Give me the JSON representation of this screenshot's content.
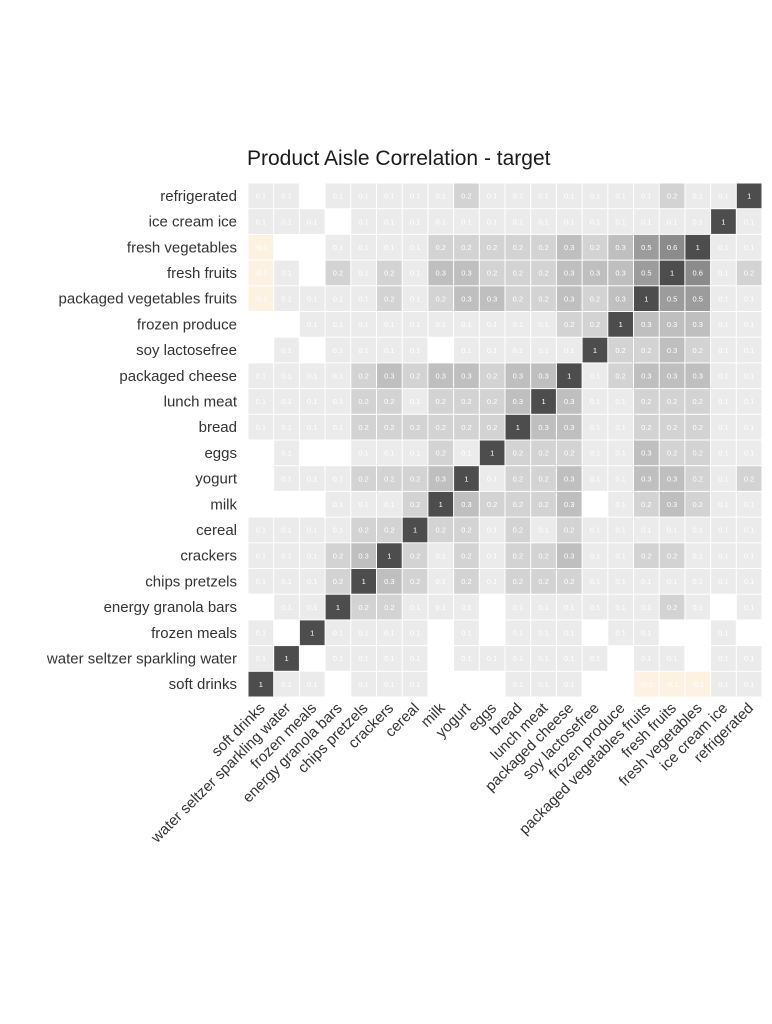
{
  "chart_data": {
    "type": "heatmap",
    "title": "Product Aisle Correlation - target",
    "xlabel": "",
    "ylabel": "",
    "labels": [
      "soft drinks",
      "water seltzer sparkling water",
      "frozen meals",
      "energy granola bars",
      "chips pretzels",
      "crackers",
      "cereal",
      "milk",
      "yogurt",
      "eggs",
      "bread",
      "lunch meat",
      "packaged cheese",
      "soy lactosefree",
      "frozen produce",
      "packaged vegetables fruits",
      "fresh fruits",
      "fresh vegetables",
      "ice cream ice",
      "refrigerated"
    ],
    "rows_top_to_bottom": [
      "refrigerated",
      "ice cream ice",
      "fresh vegetables",
      "fresh fruits",
      "packaged vegetables fruits",
      "frozen produce",
      "soy lactosefree",
      "packaged cheese",
      "lunch meat",
      "bread",
      "eggs",
      "yogurt",
      "milk",
      "cereal",
      "crackers",
      "chips pretzels",
      "energy granola bars",
      "frozen meals",
      "water seltzer sparkling water",
      "soft drinks"
    ],
    "values": [
      [
        0.1,
        0.1,
        null,
        0.1,
        0.1,
        0.1,
        0.1,
        0.1,
        0.2,
        0.1,
        0.1,
        0.1,
        0.1,
        0.1,
        0.1,
        0.1,
        0.2,
        0.1,
        0.1,
        1
      ],
      [
        0.1,
        0.1,
        0.1,
        null,
        0.1,
        0.1,
        0.1,
        0.1,
        0.1,
        0.1,
        0.1,
        0.1,
        0.1,
        0.1,
        0.1,
        0.1,
        0.1,
        0.1,
        1,
        0.1
      ],
      [
        -0.1,
        null,
        null,
        0.1,
        0.1,
        0.1,
        0.1,
        0.2,
        0.2,
        0.2,
        0.2,
        0.2,
        0.3,
        0.2,
        0.3,
        0.5,
        0.6,
        1,
        0.1,
        0.1
      ],
      [
        -0.1,
        0.1,
        null,
        0.2,
        0.1,
        0.2,
        0.1,
        0.3,
        0.3,
        0.2,
        0.2,
        0.2,
        0.3,
        0.3,
        0.3,
        0.5,
        1,
        0.6,
        0.1,
        0.2
      ],
      [
        -0.1,
        0.1,
        0.1,
        0.1,
        0.1,
        0.2,
        0.1,
        0.2,
        0.3,
        0.3,
        0.2,
        0.2,
        0.3,
        0.2,
        0.3,
        1,
        0.5,
        0.5,
        0.1,
        0.1
      ],
      [
        null,
        null,
        0.1,
        0.1,
        0.1,
        0.1,
        0.1,
        0.1,
        0.1,
        0.1,
        0.1,
        0.1,
        0.2,
        0.2,
        1,
        0.3,
        0.3,
        0.3,
        0.1,
        0.1
      ],
      [
        null,
        0.1,
        null,
        0.1,
        0.1,
        0.1,
        0.1,
        null,
        0.1,
        0.1,
        0.1,
        0.1,
        0.1,
        1,
        0.2,
        0.2,
        0.3,
        0.2,
        0.1,
        0.1
      ],
      [
        0.1,
        0.1,
        0.1,
        0.1,
        0.2,
        0.3,
        0.2,
        0.3,
        0.3,
        0.2,
        0.3,
        0.3,
        1,
        0.1,
        0.2,
        0.3,
        0.3,
        0.3,
        0.1,
        0.1
      ],
      [
        0.1,
        0.1,
        0.1,
        0.1,
        0.2,
        0.2,
        0.1,
        0.2,
        0.2,
        0.2,
        0.3,
        1,
        0.3,
        0.1,
        0.1,
        0.2,
        0.2,
        0.2,
        0.1,
        0.1
      ],
      [
        0.1,
        0.1,
        0.1,
        0.1,
        0.2,
        0.2,
        0.2,
        0.2,
        0.2,
        0.2,
        1,
        0.3,
        0.3,
        0.1,
        0.1,
        0.2,
        0.2,
        0.2,
        0.1,
        0.1
      ],
      [
        null,
        0.1,
        null,
        null,
        0.1,
        0.1,
        0.1,
        0.2,
        0.1,
        1,
        0.2,
        0.2,
        0.2,
        0.1,
        0.1,
        0.3,
        0.2,
        0.2,
        0.1,
        0.1
      ],
      [
        null,
        0.1,
        0.1,
        0.1,
        0.2,
        0.2,
        0.2,
        0.3,
        1,
        0.1,
        0.2,
        0.2,
        0.3,
        0.1,
        0.1,
        0.3,
        0.3,
        0.2,
        0.1,
        0.2
      ],
      [
        null,
        null,
        null,
        0.1,
        0.1,
        0.1,
        0.2,
        1,
        0.3,
        0.2,
        0.2,
        0.2,
        0.3,
        null,
        0.1,
        0.2,
        0.3,
        0.2,
        0.1,
        0.1
      ],
      [
        0.1,
        0.1,
        0.1,
        0.1,
        0.2,
        0.2,
        1,
        0.2,
        0.2,
        0.1,
        0.2,
        0.1,
        0.2,
        0.1,
        0.1,
        0.1,
        0.1,
        0.1,
        0.1,
        0.1
      ],
      [
        0.1,
        0.1,
        0.1,
        0.2,
        0.3,
        1,
        0.2,
        0.1,
        0.2,
        0.1,
        0.2,
        0.2,
        0.3,
        0.1,
        0.1,
        0.2,
        0.2,
        0.1,
        0.1,
        0.1
      ],
      [
        0.1,
        0.1,
        0.1,
        0.2,
        1,
        0.3,
        0.2,
        0.1,
        0.2,
        0.1,
        0.2,
        0.2,
        0.2,
        0.1,
        0.1,
        0.1,
        0.1,
        0.1,
        0.1,
        0.1
      ],
      [
        null,
        0.1,
        0.1,
        1,
        0.2,
        0.2,
        0.1,
        0.1,
        0.1,
        null,
        0.1,
        0.1,
        0.1,
        0.1,
        0.1,
        0.1,
        0.2,
        0.1,
        null,
        0.1
      ],
      [
        0.1,
        null,
        1,
        0.1,
        0.1,
        0.1,
        0.1,
        null,
        0.1,
        null,
        0.1,
        0.1,
        0.1,
        null,
        0.1,
        0.1,
        null,
        null,
        0.1,
        null
      ],
      [
        0.1,
        1,
        null,
        0.1,
        0.1,
        0.1,
        0.1,
        null,
        0.1,
        0.1,
        0.1,
        0.1,
        0.1,
        0.1,
        null,
        0.1,
        0.1,
        null,
        0.1,
        0.1
      ],
      [
        1,
        0.1,
        0.1,
        null,
        0.1,
        0.1,
        0.1,
        null,
        null,
        null,
        0.1,
        0.1,
        0.1,
        null,
        null,
        -0.1,
        -0.1,
        -0.1,
        0.1,
        0.1
      ]
    ],
    "range": [
      -1,
      1
    ],
    "colors": {
      "positive_high": "#4d4d4d",
      "positive_low": "#ebebeb",
      "negative_low": "#fdf2e2"
    }
  }
}
